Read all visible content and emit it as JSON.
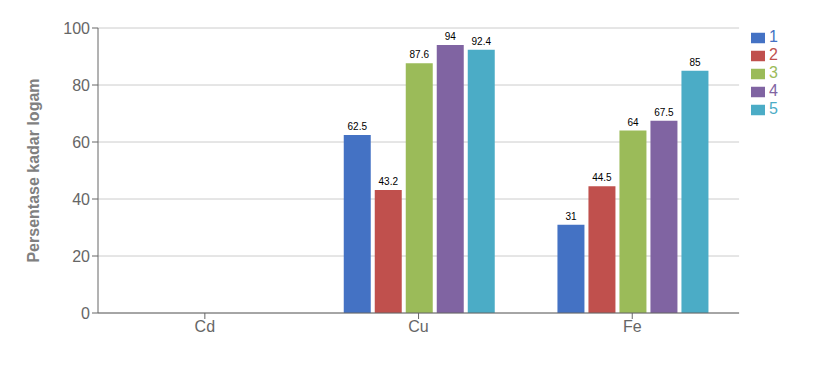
{
  "chart_data": {
    "type": "bar",
    "categories": [
      "Cd",
      "Cu",
      "Fe"
    ],
    "series": [
      {
        "name": "1",
        "color": "#4472C4",
        "values": [
          0,
          62.5,
          31
        ]
      },
      {
        "name": "2",
        "color": "#C0504D",
        "values": [
          0,
          43.2,
          44.5
        ]
      },
      {
        "name": "3",
        "color": "#9BBB59",
        "values": [
          0,
          87.6,
          64
        ]
      },
      {
        "name": "4",
        "color": "#8064A2",
        "values": [
          0,
          94,
          67.5
        ]
      },
      {
        "name": "5",
        "color": "#4BACC6",
        "values": [
          0,
          92.4,
          85
        ]
      }
    ],
    "ylabel": "Persentase kadar logam",
    "ylim": [
      0,
      100
    ],
    "yticks": [
      0,
      20,
      40,
      60,
      80,
      100
    ],
    "grid": true,
    "legend": "upper right",
    "data_labels": true
  }
}
